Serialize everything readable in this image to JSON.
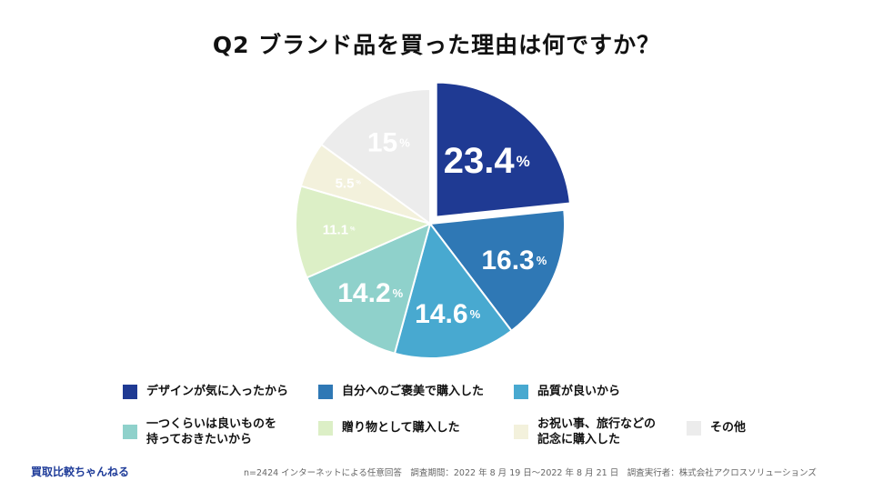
{
  "title": "Q2 ブランド品を買った理由は何ですか？",
  "chart_data": {
    "type": "pie",
    "unit": "%",
    "slices": [
      {
        "label": "デザインが気に入ったから",
        "value": 23.4,
        "value_label": "23.4",
        "color": "#1f3a93",
        "text_color": "#ffffff"
      },
      {
        "label": "自分へのご褒美で購入した",
        "value": 16.3,
        "value_label": "16.3",
        "color": "#2f78b5",
        "text_color": "#ffffff"
      },
      {
        "label": "品質が良いから",
        "value": 14.6,
        "value_label": "14.6",
        "color": "#48a9d0",
        "text_color": "#ffffff"
      },
      {
        "label": "一つくらいは良いものを\n持っておきたいから",
        "value": 14.2,
        "value_label": "14.2",
        "color": "#8fd1cb",
        "text_color": "#ffffff"
      },
      {
        "label": "贈り物として購入した",
        "value": 11.1,
        "value_label": "11.1",
        "color": "#dcefc6",
        "text_color": "#ffffff"
      },
      {
        "label": "お祝い事、旅行などの\n記念に購入した",
        "value": 5.5,
        "value_label": "5.5",
        "color": "#f3f1dc",
        "text_color": "#ffffff"
      },
      {
        "label": "その他",
        "value": 15,
        "value_label": "15",
        "color": "#ececec",
        "text_color": "#ffffff"
      }
    ]
  },
  "footer": {
    "brand": "買取比較ちゃんねる",
    "note": "n=2424 インターネットによる任意回答　調査期間：2022 年 8 月 19 日〜2022 年 8 月 21 日　調査実行者：株式会社アクロスソリューションズ"
  }
}
